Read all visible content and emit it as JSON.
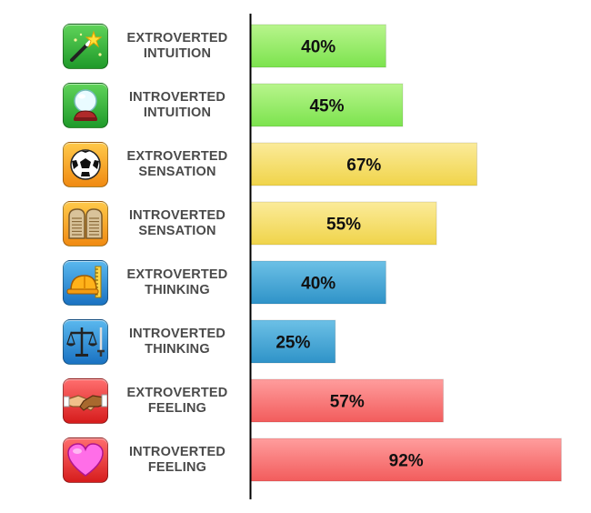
{
  "chart_data": {
    "type": "bar",
    "orientation": "horizontal",
    "categories": [
      "EXTROVERTED INTUITION",
      "INTROVERTED INTUITION",
      "EXTROVERTED SENSATION",
      "INTROVERTED SENSATION",
      "EXTROVERTED THINKING",
      "INTROVERTED THINKING",
      "EXTROVERTED FEELING",
      "INTROVERTED FEELING"
    ],
    "label_lines": [
      [
        "EXTROVERTED",
        "INTUITION"
      ],
      [
        "INTROVERTED",
        "INTUITION"
      ],
      [
        "EXTROVERTED",
        "SENSATION"
      ],
      [
        "INTROVERTED",
        "SENSATION"
      ],
      [
        "EXTROVERTED",
        "THINKING"
      ],
      [
        "INTROVERTED",
        "THINKING"
      ],
      [
        "EXTROVERTED",
        "FEELING"
      ],
      [
        "INTROVERTED",
        "FEELING"
      ]
    ],
    "values": [
      40,
      45,
      67,
      55,
      40,
      25,
      57,
      92
    ],
    "value_labels": [
      "40%",
      "45%",
      "67%",
      "55%",
      "40%",
      "25%",
      "57%",
      "92%"
    ],
    "xlim": [
      0,
      100
    ],
    "grid": false,
    "title": "",
    "xlabel": "",
    "ylabel": "",
    "bar_colors": [
      [
        "#b8f58c",
        "#7ce34e"
      ],
      [
        "#b8f58c",
        "#7ce34e"
      ],
      [
        "#fbeb9a",
        "#f0d44a"
      ],
      [
        "#fbeb9a",
        "#f0d44a"
      ],
      [
        "#6cc0e6",
        "#2f93c8"
      ],
      [
        "#6cc0e6",
        "#2f93c8"
      ],
      [
        "#ff9d9d",
        "#f25c5c"
      ],
      [
        "#ff9d9d",
        "#f25c5c"
      ]
    ],
    "icons": [
      {
        "name": "magic-wand-icon",
        "tile": [
          "#5fd35a",
          "#1f9a2a"
        ]
      },
      {
        "name": "crystal-ball-icon",
        "tile": [
          "#5fd35a",
          "#1f9a2a"
        ]
      },
      {
        "name": "soccer-ball-icon",
        "tile": [
          "#ffc94a",
          "#f08a12"
        ]
      },
      {
        "name": "stone-tablets-icon",
        "tile": [
          "#ffc94a",
          "#f08a12"
        ]
      },
      {
        "name": "hard-hat-ruler-icon",
        "tile": [
          "#5ab8ee",
          "#1a72c2"
        ]
      },
      {
        "name": "scales-sword-icon",
        "tile": [
          "#5ab8ee",
          "#1a72c2"
        ]
      },
      {
        "name": "handshake-icon",
        "tile": [
          "#ff6e6e",
          "#d61c1c"
        ]
      },
      {
        "name": "heart-icon",
        "tile": [
          "#ff6e6e",
          "#d61c1c"
        ]
      }
    ]
  }
}
